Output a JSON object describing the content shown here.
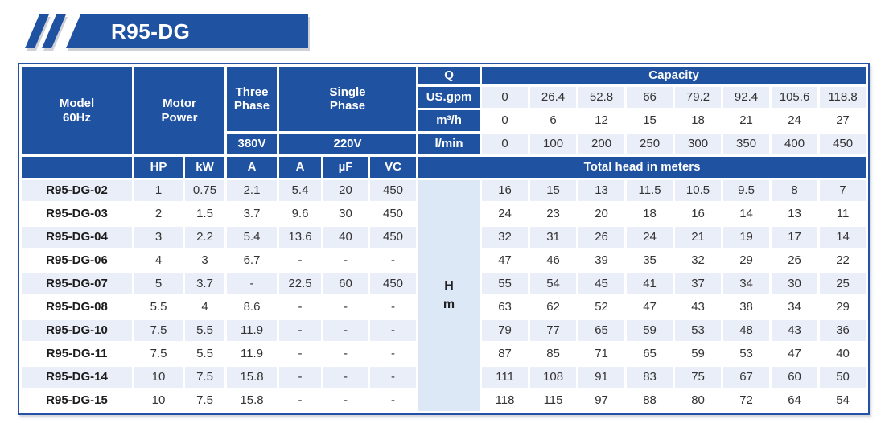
{
  "banner": {
    "title": "R95-DG"
  },
  "colors": {
    "header_blue": "#2052a2",
    "light_row": "#e9eef8",
    "head_unit_cell": "#dce8f6",
    "table_border": "#2450a5"
  },
  "table": {
    "header": {
      "model": "Model\n60Hz",
      "motor_power": "Motor\nPower",
      "three_phase": "Three\nPhase",
      "single_phase": "Single\nPhase",
      "v380": "380V",
      "v220": "220V",
      "q": "Q",
      "capacity": "Capacity",
      "us_gpm": "US.gpm",
      "m3_h": "m³/h",
      "l_min": "l/min",
      "hp": "HP",
      "kw": "kW",
      "a_three": "A",
      "a_single": "A",
      "uf": "µF",
      "vc": "VC",
      "total_head": "Total head in meters",
      "head_unit": "H\nm"
    },
    "capacity_rows": {
      "us_gpm": [
        "0",
        "26.4",
        "52.8",
        "66",
        "79.2",
        "92.4",
        "105.6",
        "118.8"
      ],
      "m3_h": [
        "0",
        "6",
        "12",
        "15",
        "18",
        "21",
        "24",
        "27"
      ],
      "l_min": [
        "0",
        "100",
        "200",
        "250",
        "300",
        "350",
        "400",
        "450"
      ]
    },
    "rows": [
      {
        "model": "R95-DG-02",
        "hp": "1",
        "kw": "0.75",
        "a_three": "2.1",
        "a_single": "5.4",
        "uf": "20",
        "vc": "450",
        "heads": [
          "16",
          "15",
          "13",
          "11.5",
          "10.5",
          "9.5",
          "8",
          "7"
        ]
      },
      {
        "model": "R95-DG-03",
        "hp": "2",
        "kw": "1.5",
        "a_three": "3.7",
        "a_single": "9.6",
        "uf": "30",
        "vc": "450",
        "heads": [
          "24",
          "23",
          "20",
          "18",
          "16",
          "14",
          "13",
          "11"
        ]
      },
      {
        "model": "R95-DG-04",
        "hp": "3",
        "kw": "2.2",
        "a_three": "5.4",
        "a_single": "13.6",
        "uf": "40",
        "vc": "450",
        "heads": [
          "32",
          "31",
          "26",
          "24",
          "21",
          "19",
          "17",
          "14"
        ]
      },
      {
        "model": "R95-DG-06",
        "hp": "4",
        "kw": "3",
        "a_three": "6.7",
        "a_single": "-",
        "uf": "-",
        "vc": "-",
        "heads": [
          "47",
          "46",
          "39",
          "35",
          "32",
          "29",
          "26",
          "22"
        ]
      },
      {
        "model": "R95-DG-07",
        "hp": "5",
        "kw": "3.7",
        "a_three": "-",
        "a_single": "22.5",
        "uf": "60",
        "vc": "450",
        "heads": [
          "55",
          "54",
          "45",
          "41",
          "37",
          "34",
          "30",
          "25"
        ]
      },
      {
        "model": "R95-DG-08",
        "hp": "5.5",
        "kw": "4",
        "a_three": "8.6",
        "a_single": "-",
        "uf": "-",
        "vc": "-",
        "heads": [
          "63",
          "62",
          "52",
          "47",
          "43",
          "38",
          "34",
          "29"
        ]
      },
      {
        "model": "R95-DG-10",
        "hp": "7.5",
        "kw": "5.5",
        "a_three": "11.9",
        "a_single": "-",
        "uf": "-",
        "vc": "-",
        "heads": [
          "79",
          "77",
          "65",
          "59",
          "53",
          "48",
          "43",
          "36"
        ]
      },
      {
        "model": "R95-DG-11",
        "hp": "7.5",
        "kw": "5.5",
        "a_three": "11.9",
        "a_single": "-",
        "uf": "-",
        "vc": "-",
        "heads": [
          "87",
          "85",
          "71",
          "65",
          "59",
          "53",
          "47",
          "40"
        ]
      },
      {
        "model": "R95-DG-14",
        "hp": "10",
        "kw": "7.5",
        "a_three": "15.8",
        "a_single": "-",
        "uf": "-",
        "vc": "-",
        "heads": [
          "111",
          "108",
          "91",
          "83",
          "75",
          "67",
          "60",
          "50"
        ]
      },
      {
        "model": "R95-DG-15",
        "hp": "10",
        "kw": "7.5",
        "a_three": "15.8",
        "a_single": "-",
        "uf": "-",
        "vc": "-",
        "heads": [
          "118",
          "115",
          "97",
          "88",
          "80",
          "72",
          "64",
          "54"
        ]
      }
    ]
  }
}
